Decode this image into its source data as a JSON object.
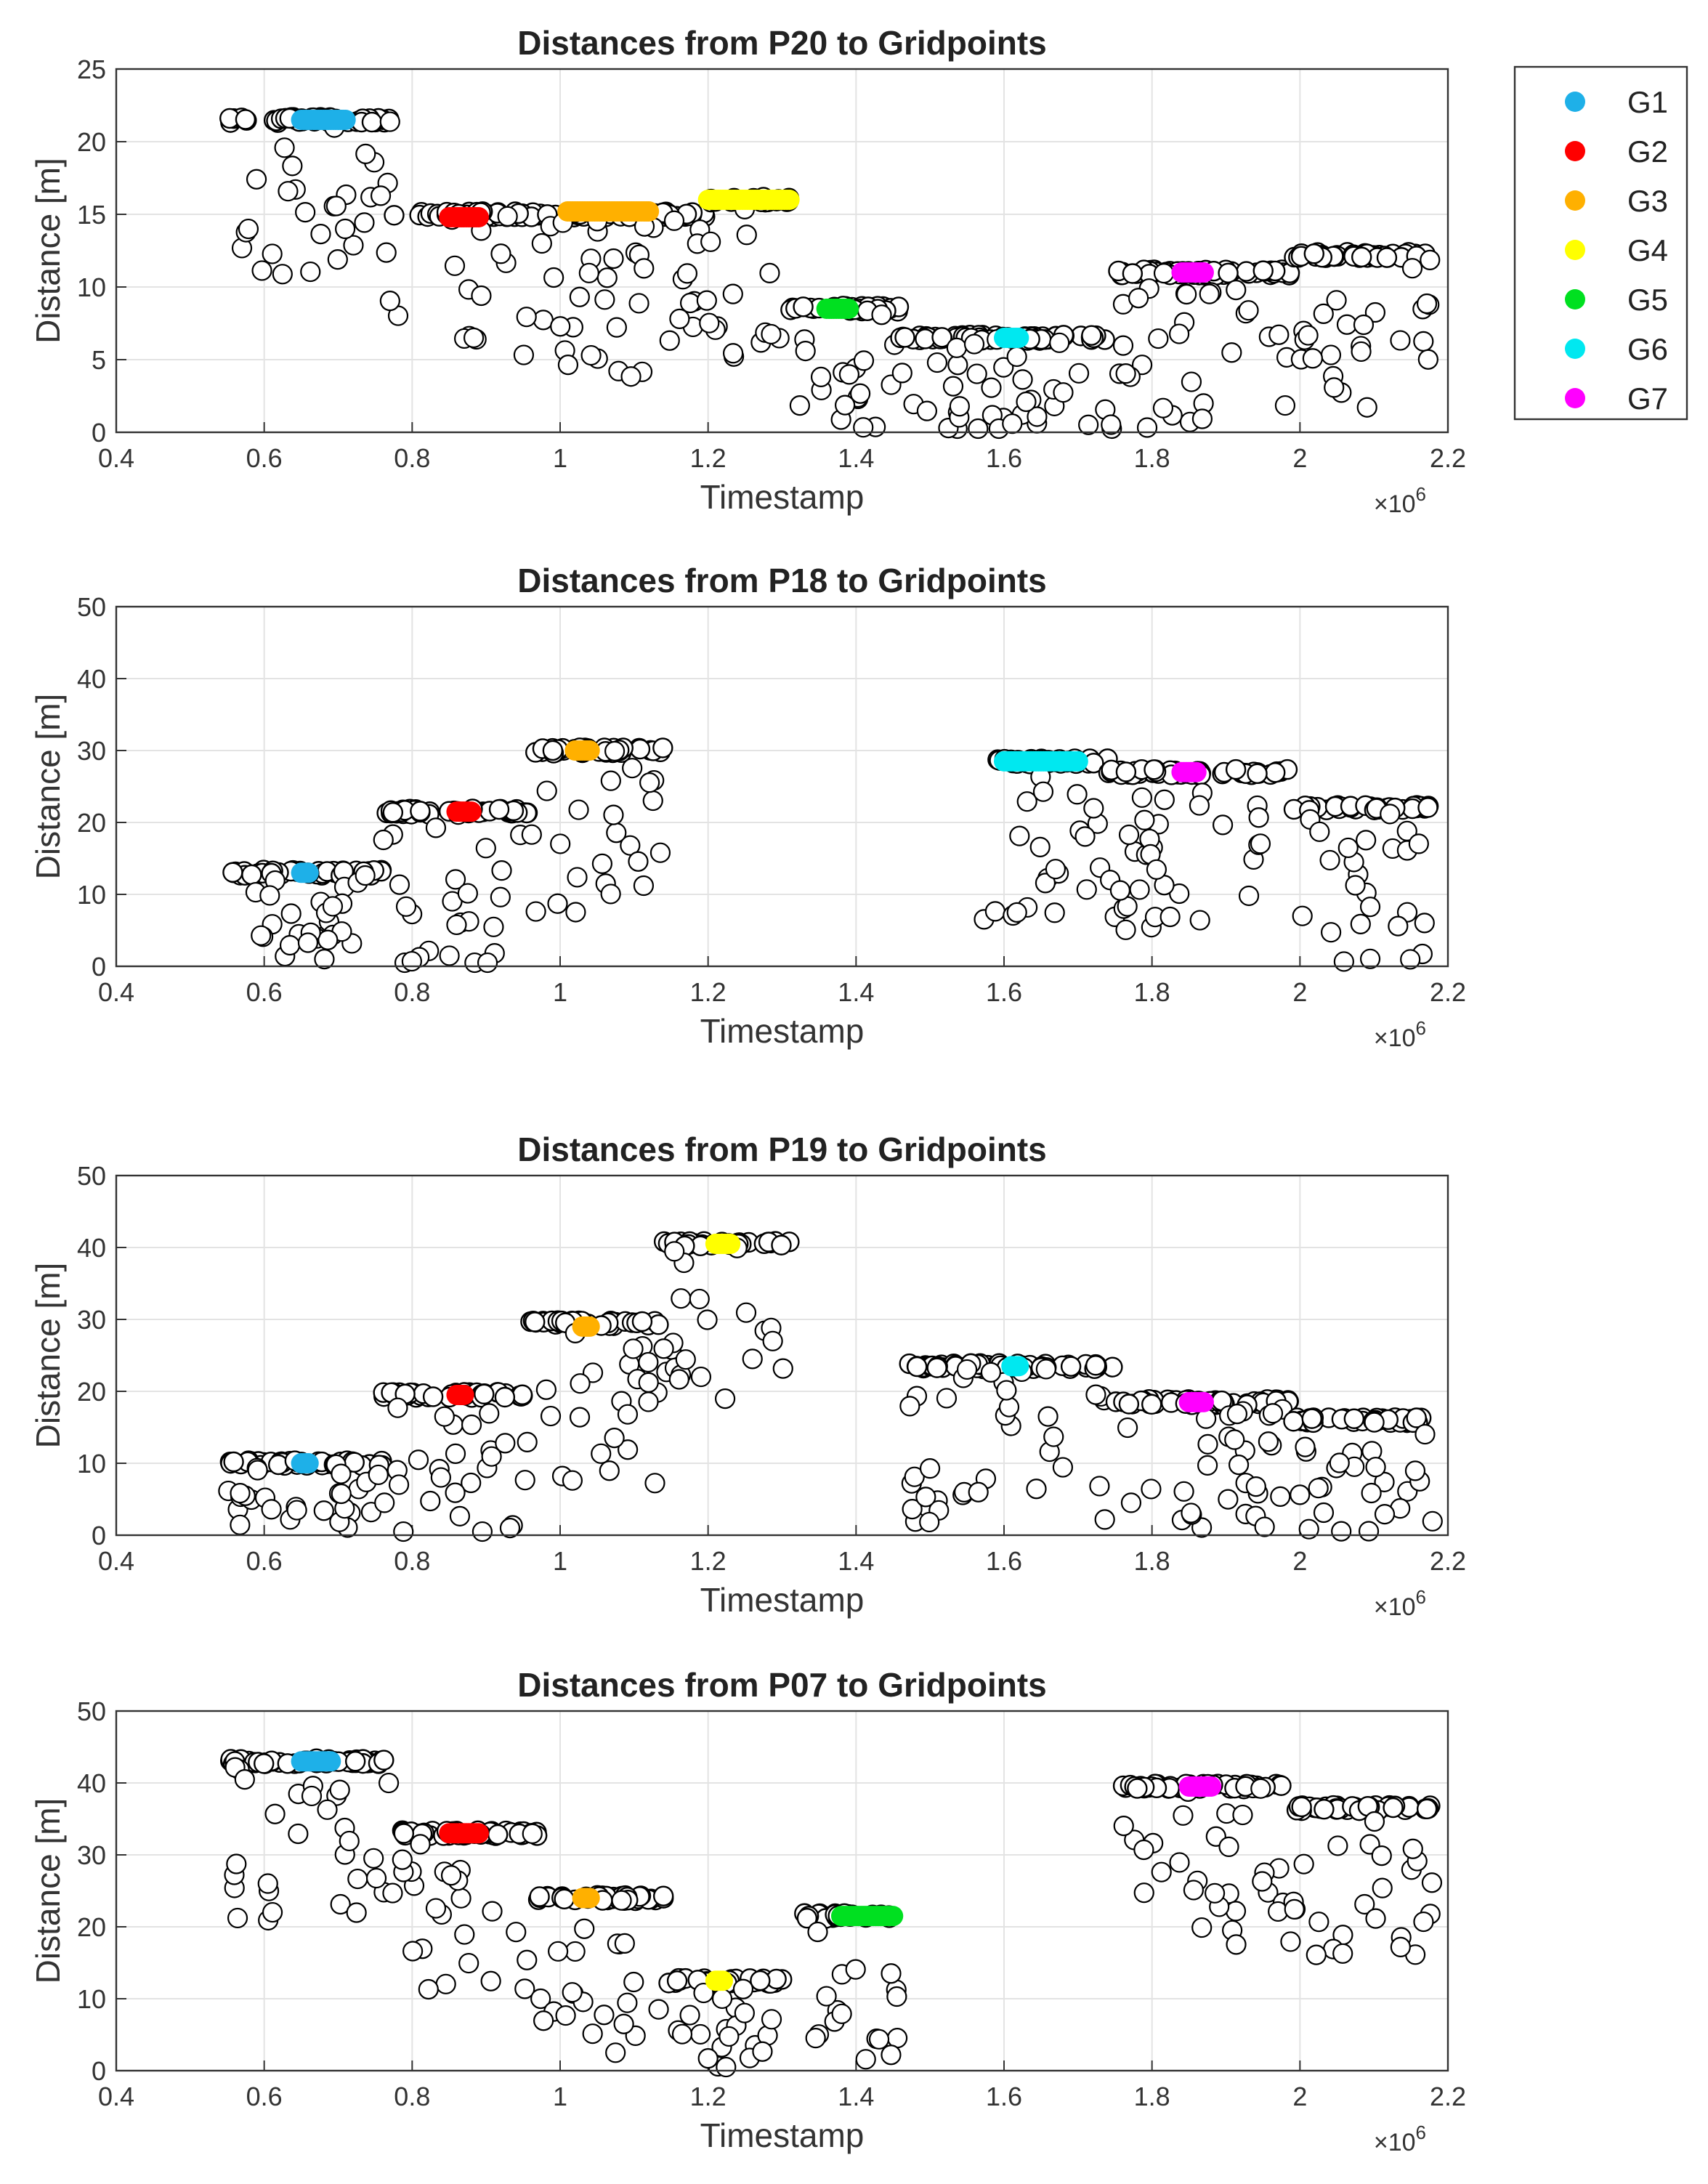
{
  "figure": {
    "legend": [
      {
        "label": "G1",
        "color": "#1EB0E8"
      },
      {
        "label": "G2",
        "color": "#FF0000"
      },
      {
        "label": "G3",
        "color": "#FFB000"
      },
      {
        "label": "G4",
        "color": "#FFFF00"
      },
      {
        "label": "G5",
        "color": "#00E020"
      },
      {
        "label": "G6",
        "color": "#00E8F0"
      },
      {
        "label": "G7",
        "color": "#FF00FF"
      }
    ]
  },
  "chart_data": [
    {
      "type": "scatter",
      "title": "Distances from P20 to Gridpoints",
      "xlabel": "Timestamp",
      "ylabel": "Distance [m]",
      "x_multiplier": "×10",
      "x_exponent": "6",
      "xlim": [
        0.4,
        2.2
      ],
      "ylim": [
        0,
        25
      ],
      "xticks": [
        "0.4",
        "0.6",
        "0.8",
        "1",
        "1.2",
        "1.4",
        "1.6",
        "1.8",
        "2",
        "2.2"
      ],
      "yticks": [
        "0",
        "5",
        "10",
        "15",
        "20",
        "25"
      ],
      "grid": true,
      "steps": [
        {
          "x0": 0.55,
          "x1": 0.77,
          "y": 21.5
        },
        {
          "x0": 0.77,
          "x1": 1.2,
          "y": 15
        },
        {
          "x0": 1.2,
          "x1": 1.31,
          "y": 16
        },
        {
          "x0": 1.31,
          "x1": 1.46,
          "y": 8.5
        },
        {
          "x0": 1.46,
          "x1": 1.75,
          "y": 6.5
        },
        {
          "x0": 1.75,
          "x1": 1.99,
          "y": 11
        },
        {
          "x0": 1.99,
          "x1": 2.18,
          "y": 12.2
        }
      ],
      "series": [
        {
          "name": "G1",
          "x0": 0.65,
          "x1": 0.71,
          "y": 21.5
        },
        {
          "name": "G2",
          "x0": 0.85,
          "x1": 0.89,
          "y": 14.8
        },
        {
          "name": "G3",
          "x0": 1.01,
          "x1": 1.12,
          "y": 15.2
        },
        {
          "name": "G4",
          "x0": 1.2,
          "x1": 1.31,
          "y": 16
        },
        {
          "name": "G5",
          "x0": 1.36,
          "x1": 1.39,
          "y": 8.5
        },
        {
          "name": "G6",
          "x0": 1.6,
          "x1": 1.62,
          "y": 6.5
        },
        {
          "name": "G7",
          "x0": 1.84,
          "x1": 1.87,
          "y": 11
        }
      ]
    },
    {
      "type": "scatter",
      "title": "Distances from P18 to Gridpoints",
      "xlabel": "Timestamp",
      "ylabel": "Distance [m]",
      "x_multiplier": "×10",
      "x_exponent": "6",
      "xlim": [
        0.4,
        2.2
      ],
      "ylim": [
        0,
        50
      ],
      "xticks": [
        "0.4",
        "0.6",
        "0.8",
        "1",
        "1.2",
        "1.4",
        "1.6",
        "1.8",
        "2",
        "2.2"
      ],
      "yticks": [
        "0",
        "10",
        "20",
        "30",
        "40",
        "50"
      ],
      "grid": true,
      "steps": [
        {
          "x0": 0.55,
          "x1": 0.76,
          "y": 13
        },
        {
          "x0": 0.76,
          "x1": 0.96,
          "y": 21.5
        },
        {
          "x0": 0.96,
          "x1": 1.14,
          "y": 30
        },
        {
          "x0": 1.57,
          "x1": 1.74,
          "y": 28.5
        },
        {
          "x0": 1.74,
          "x1": 1.99,
          "y": 27
        },
        {
          "x0": 1.99,
          "x1": 2.18,
          "y": 22
        }
      ],
      "series": [
        {
          "name": "G1",
          "x0": 0.65,
          "x1": 0.66,
          "y": 13
        },
        {
          "name": "G2",
          "x0": 0.86,
          "x1": 0.88,
          "y": 21.5
        },
        {
          "name": "G3",
          "x0": 1.02,
          "x1": 1.04,
          "y": 30
        },
        {
          "name": "G6",
          "x0": 1.6,
          "x1": 1.7,
          "y": 28.5
        },
        {
          "name": "G7",
          "x0": 1.84,
          "x1": 1.86,
          "y": 27
        }
      ]
    },
    {
      "type": "scatter",
      "title": "Distances from P19 to Gridpoints",
      "xlabel": "Timestamp",
      "ylabel": "Distance [m]",
      "x_multiplier": "×10",
      "x_exponent": "6",
      "xlim": [
        0.4,
        2.2
      ],
      "ylim": [
        0,
        50
      ],
      "xticks": [
        "0.4",
        "0.6",
        "0.8",
        "1",
        "1.2",
        "1.4",
        "1.6",
        "1.8",
        "2",
        "2.2"
      ],
      "yticks": [
        "0",
        "10",
        "20",
        "30",
        "40",
        "50"
      ],
      "grid": true,
      "steps": [
        {
          "x0": 0.55,
          "x1": 0.76,
          "y": 10
        },
        {
          "x0": 0.76,
          "x1": 0.96,
          "y": 19.5
        },
        {
          "x0": 0.96,
          "x1": 1.14,
          "y": 29.5
        },
        {
          "x0": 1.14,
          "x1": 1.31,
          "y": 40.5
        },
        {
          "x0": 1.47,
          "x1": 1.75,
          "y": 23.5
        },
        {
          "x0": 1.75,
          "x1": 1.99,
          "y": 18.5
        },
        {
          "x0": 1.99,
          "x1": 2.18,
          "y": 16
        }
      ],
      "series": [
        {
          "name": "G1",
          "x0": 0.65,
          "x1": 0.66,
          "y": 10
        },
        {
          "name": "G2",
          "x0": 0.86,
          "x1": 0.87,
          "y": 19.5
        },
        {
          "name": "G3",
          "x0": 1.03,
          "x1": 1.04,
          "y": 29
        },
        {
          "name": "G4",
          "x0": 1.21,
          "x1": 1.23,
          "y": 40.5
        },
        {
          "name": "G6",
          "x0": 1.61,
          "x1": 1.62,
          "y": 23.5
        },
        {
          "name": "G7",
          "x0": 1.85,
          "x1": 1.87,
          "y": 18.5
        }
      ]
    },
    {
      "type": "scatter",
      "title": "Distances from P07 to Gridpoints",
      "xlabel": "Timestamp",
      "ylabel": "Distance [m]",
      "x_multiplier": "×10",
      "x_exponent": "6",
      "xlim": [
        0.4,
        2.2
      ],
      "ylim": [
        0,
        50
      ],
      "xticks": [
        "0.4",
        "0.6",
        "0.8",
        "1",
        "1.2",
        "1.4",
        "1.6",
        "1.8",
        "2",
        "2.2"
      ],
      "yticks": [
        "0",
        "10",
        "20",
        "30",
        "40",
        "50"
      ],
      "grid": true,
      "steps": [
        {
          "x0": 0.55,
          "x1": 0.77,
          "y": 43
        },
        {
          "x0": 0.77,
          "x1": 0.97,
          "y": 33
        },
        {
          "x0": 0.97,
          "x1": 1.14,
          "y": 24
        },
        {
          "x0": 1.14,
          "x1": 1.3,
          "y": 12.5
        },
        {
          "x0": 1.33,
          "x1": 1.46,
          "y": 21.5
        },
        {
          "x0": 1.76,
          "x1": 1.99,
          "y": 39.5
        },
        {
          "x0": 1.99,
          "x1": 2.18,
          "y": 36.5
        }
      ],
      "series": [
        {
          "name": "G1",
          "x0": 0.65,
          "x1": 0.69,
          "y": 43
        },
        {
          "name": "G2",
          "x0": 0.85,
          "x1": 0.89,
          "y": 33
        },
        {
          "name": "G3",
          "x0": 1.03,
          "x1": 1.04,
          "y": 24
        },
        {
          "name": "G4",
          "x0": 1.21,
          "x1": 1.22,
          "y": 12.5
        },
        {
          "name": "G5",
          "x0": 1.38,
          "x1": 1.45,
          "y": 21.5
        },
        {
          "name": "G7",
          "x0": 1.85,
          "x1": 1.88,
          "y": 39.5
        }
      ]
    }
  ]
}
